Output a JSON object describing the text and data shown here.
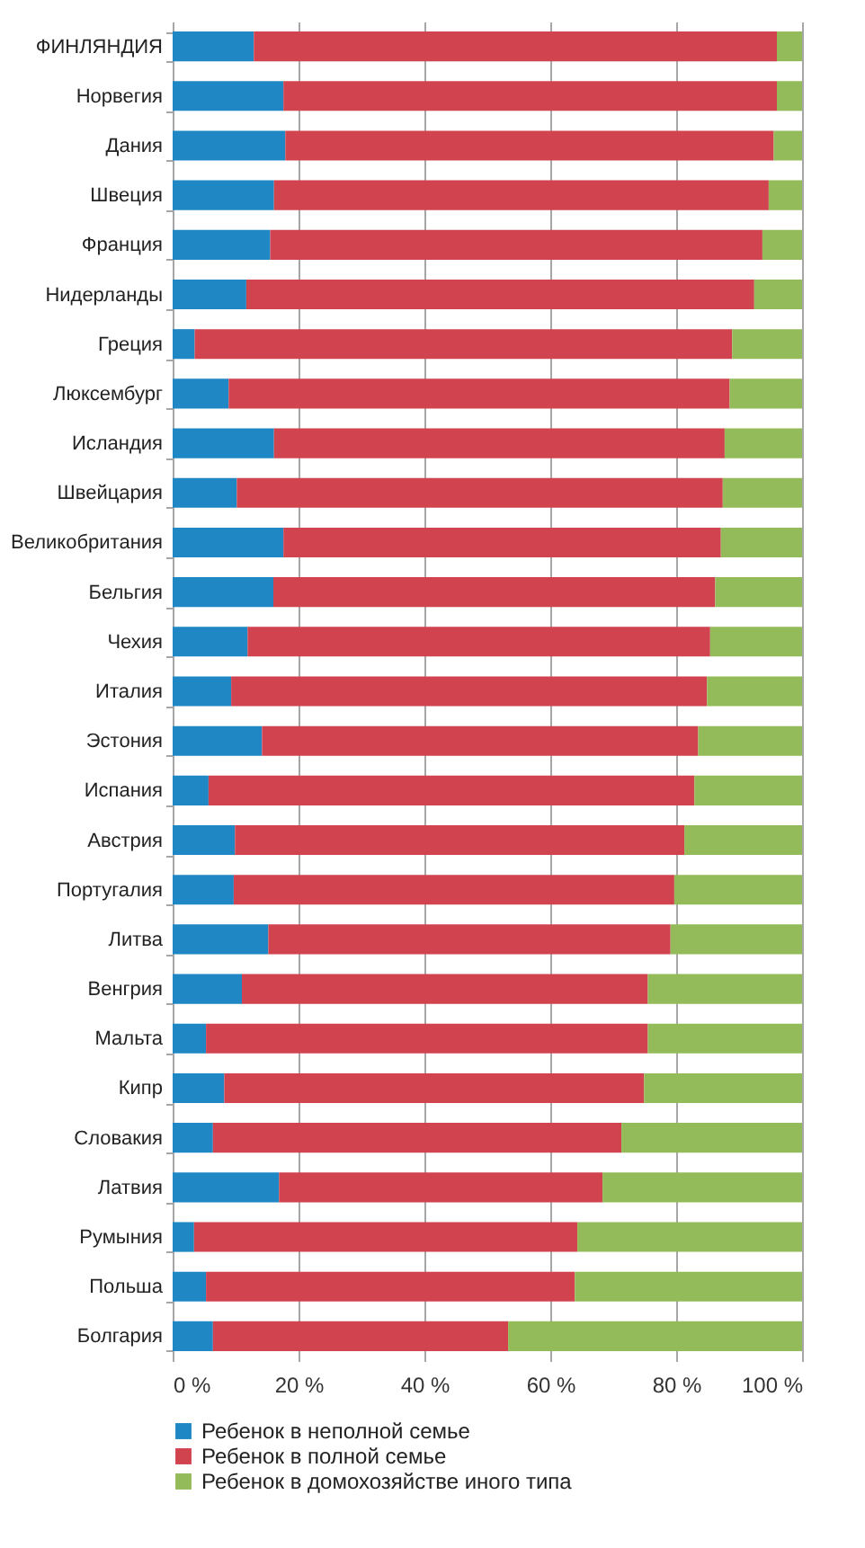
{
  "chart_data": {
    "type": "bar",
    "orientation": "horizontal",
    "stacked": true,
    "grid": "x",
    "legend": "bottom",
    "categories": [
      "ФИНЛЯНДИЯ",
      "Норвегия",
      "Дания",
      "Швеция",
      "Франция",
      "Нидерланды",
      "Греция",
      "Люксембург",
      "Исландия",
      "Швейцария",
      "Великобритания",
      "Бельгия",
      "Чехия",
      "Италия",
      "Эстония",
      "Испания",
      "Австрия",
      "Португалия",
      "Литва",
      "Венгрия",
      "Мальта",
      "Кипр",
      "Словакия",
      "Латвия",
      "Румыния",
      "Польша",
      "Болгария"
    ],
    "xlim": [
      0,
      100
    ],
    "xticks": [
      {
        "value": 0,
        "label": "0 %"
      },
      {
        "value": 20,
        "label": "20 %"
      },
      {
        "value": 40,
        "label": "40 %"
      },
      {
        "value": 60,
        "label": "60 %"
      },
      {
        "value": 80,
        "label": "80 %"
      },
      {
        "value": 100,
        "label": "100 %"
      }
    ],
    "series": [
      {
        "name": "Ребенок в неполной семье",
        "color": "#1f87c4",
        "values": [
          12.9,
          17.6,
          17.9,
          16.1,
          15.5,
          11.7,
          3.5,
          8.9,
          16.1,
          10.2,
          17.6,
          16.0,
          11.9,
          9.3,
          14.2,
          5.7,
          9.9,
          9.7,
          15.2,
          11.0,
          5.3,
          8.2,
          6.4,
          16.9,
          3.4,
          5.3,
          6.4
        ]
      },
      {
        "name": "Ребенок в полной семье",
        "color": "#d0434f",
        "values": [
          83.1,
          78.4,
          77.6,
          78.6,
          78.2,
          80.7,
          85.4,
          79.6,
          71.6,
          77.2,
          69.5,
          70.2,
          73.5,
          75.6,
          69.3,
          77.2,
          71.4,
          70.0,
          63.9,
          64.5,
          70.2,
          66.7,
          64.9,
          51.4,
          60.9,
          58.6,
          46.9
        ]
      },
      {
        "name": "Ребенок в домохозяйстве иного типа",
        "color": "#93bb59",
        "values": [
          4.0,
          4.0,
          4.5,
          5.3,
          6.3,
          7.6,
          11.1,
          11.5,
          12.3,
          12.6,
          12.9,
          13.8,
          14.6,
          15.1,
          16.5,
          17.1,
          18.7,
          20.3,
          20.9,
          24.5,
          24.5,
          25.1,
          28.7,
          31.7,
          35.7,
          36.1,
          46.7
        ]
      }
    ]
  }
}
